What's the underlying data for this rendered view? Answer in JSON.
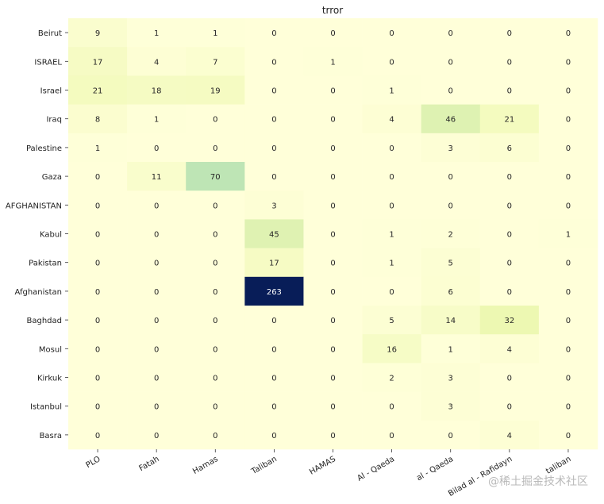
{
  "chart_data": {
    "type": "heatmap",
    "title": "trror",
    "xlabel": "",
    "ylabel": "",
    "colormap": "YlGnBu",
    "vmin": 0,
    "vmax": 263,
    "x_categories": [
      "PLO",
      "Fatah",
      "Hamas",
      "Taliban",
      "HAMAS",
      "Al - Qaeda",
      "al - Qaeda",
      "Bilad al - Rafidayn",
      "taliban"
    ],
    "y_categories": [
      "Beirut",
      "ISRAEL",
      "Israel",
      "Iraq",
      "Palestine",
      "Gaza",
      "AFGHANISTAN",
      "Kabul",
      "Pakistan",
      "Afghanistan",
      "Baghdad",
      "Mosul",
      "Kirkuk",
      "Istanbul",
      "Basra"
    ],
    "values": [
      [
        9,
        1,
        1,
        0,
        0,
        0,
        0,
        0,
        0
      ],
      [
        17,
        4,
        7,
        0,
        1,
        0,
        0,
        0,
        0
      ],
      [
        21,
        18,
        19,
        0,
        0,
        1,
        0,
        0,
        0
      ],
      [
        8,
        1,
        0,
        0,
        0,
        4,
        46,
        21,
        0
      ],
      [
        1,
        0,
        0,
        0,
        0,
        0,
        3,
        6,
        0
      ],
      [
        0,
        11,
        70,
        0,
        0,
        0,
        0,
        0,
        0
      ],
      [
        0,
        0,
        0,
        3,
        0,
        0,
        0,
        0,
        0
      ],
      [
        0,
        0,
        0,
        45,
        0,
        1,
        2,
        0,
        1
      ],
      [
        0,
        0,
        0,
        17,
        0,
        1,
        5,
        0,
        0
      ],
      [
        0,
        0,
        0,
        263,
        0,
        0,
        6,
        0,
        0
      ],
      [
        0,
        0,
        0,
        0,
        0,
        5,
        14,
        32,
        0
      ],
      [
        0,
        0,
        0,
        0,
        0,
        16,
        1,
        4,
        0
      ],
      [
        0,
        0,
        0,
        0,
        0,
        2,
        3,
        0,
        0
      ],
      [
        0,
        0,
        0,
        0,
        0,
        0,
        3,
        0,
        0
      ],
      [
        0,
        0,
        0,
        0,
        0,
        0,
        0,
        4,
        0
      ]
    ],
    "annotations": true,
    "colorbar": false,
    "grid": false
  },
  "watermark": "@稀土掘金技术社区"
}
